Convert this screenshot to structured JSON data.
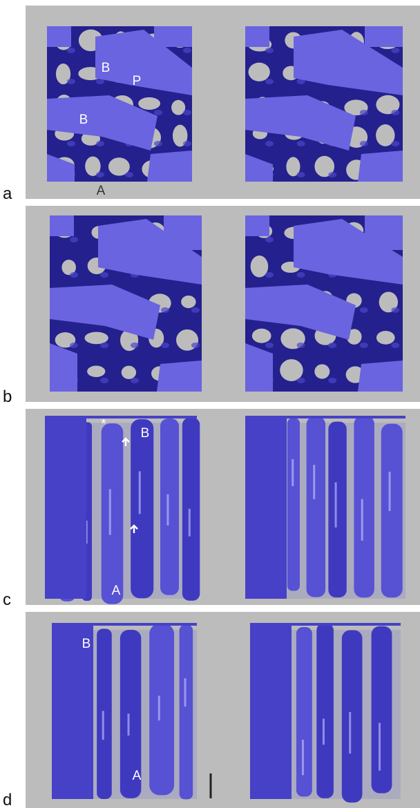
{
  "panels": [
    {
      "label": "a",
      "annotations": [
        "B",
        "P",
        "B",
        "A"
      ]
    },
    {
      "label": "b",
      "annotations": []
    },
    {
      "label": "c",
      "annotations": [
        "B",
        "*",
        "A"
      ]
    },
    {
      "label": "d",
      "annotations": [
        "B",
        "A"
      ]
    }
  ]
}
